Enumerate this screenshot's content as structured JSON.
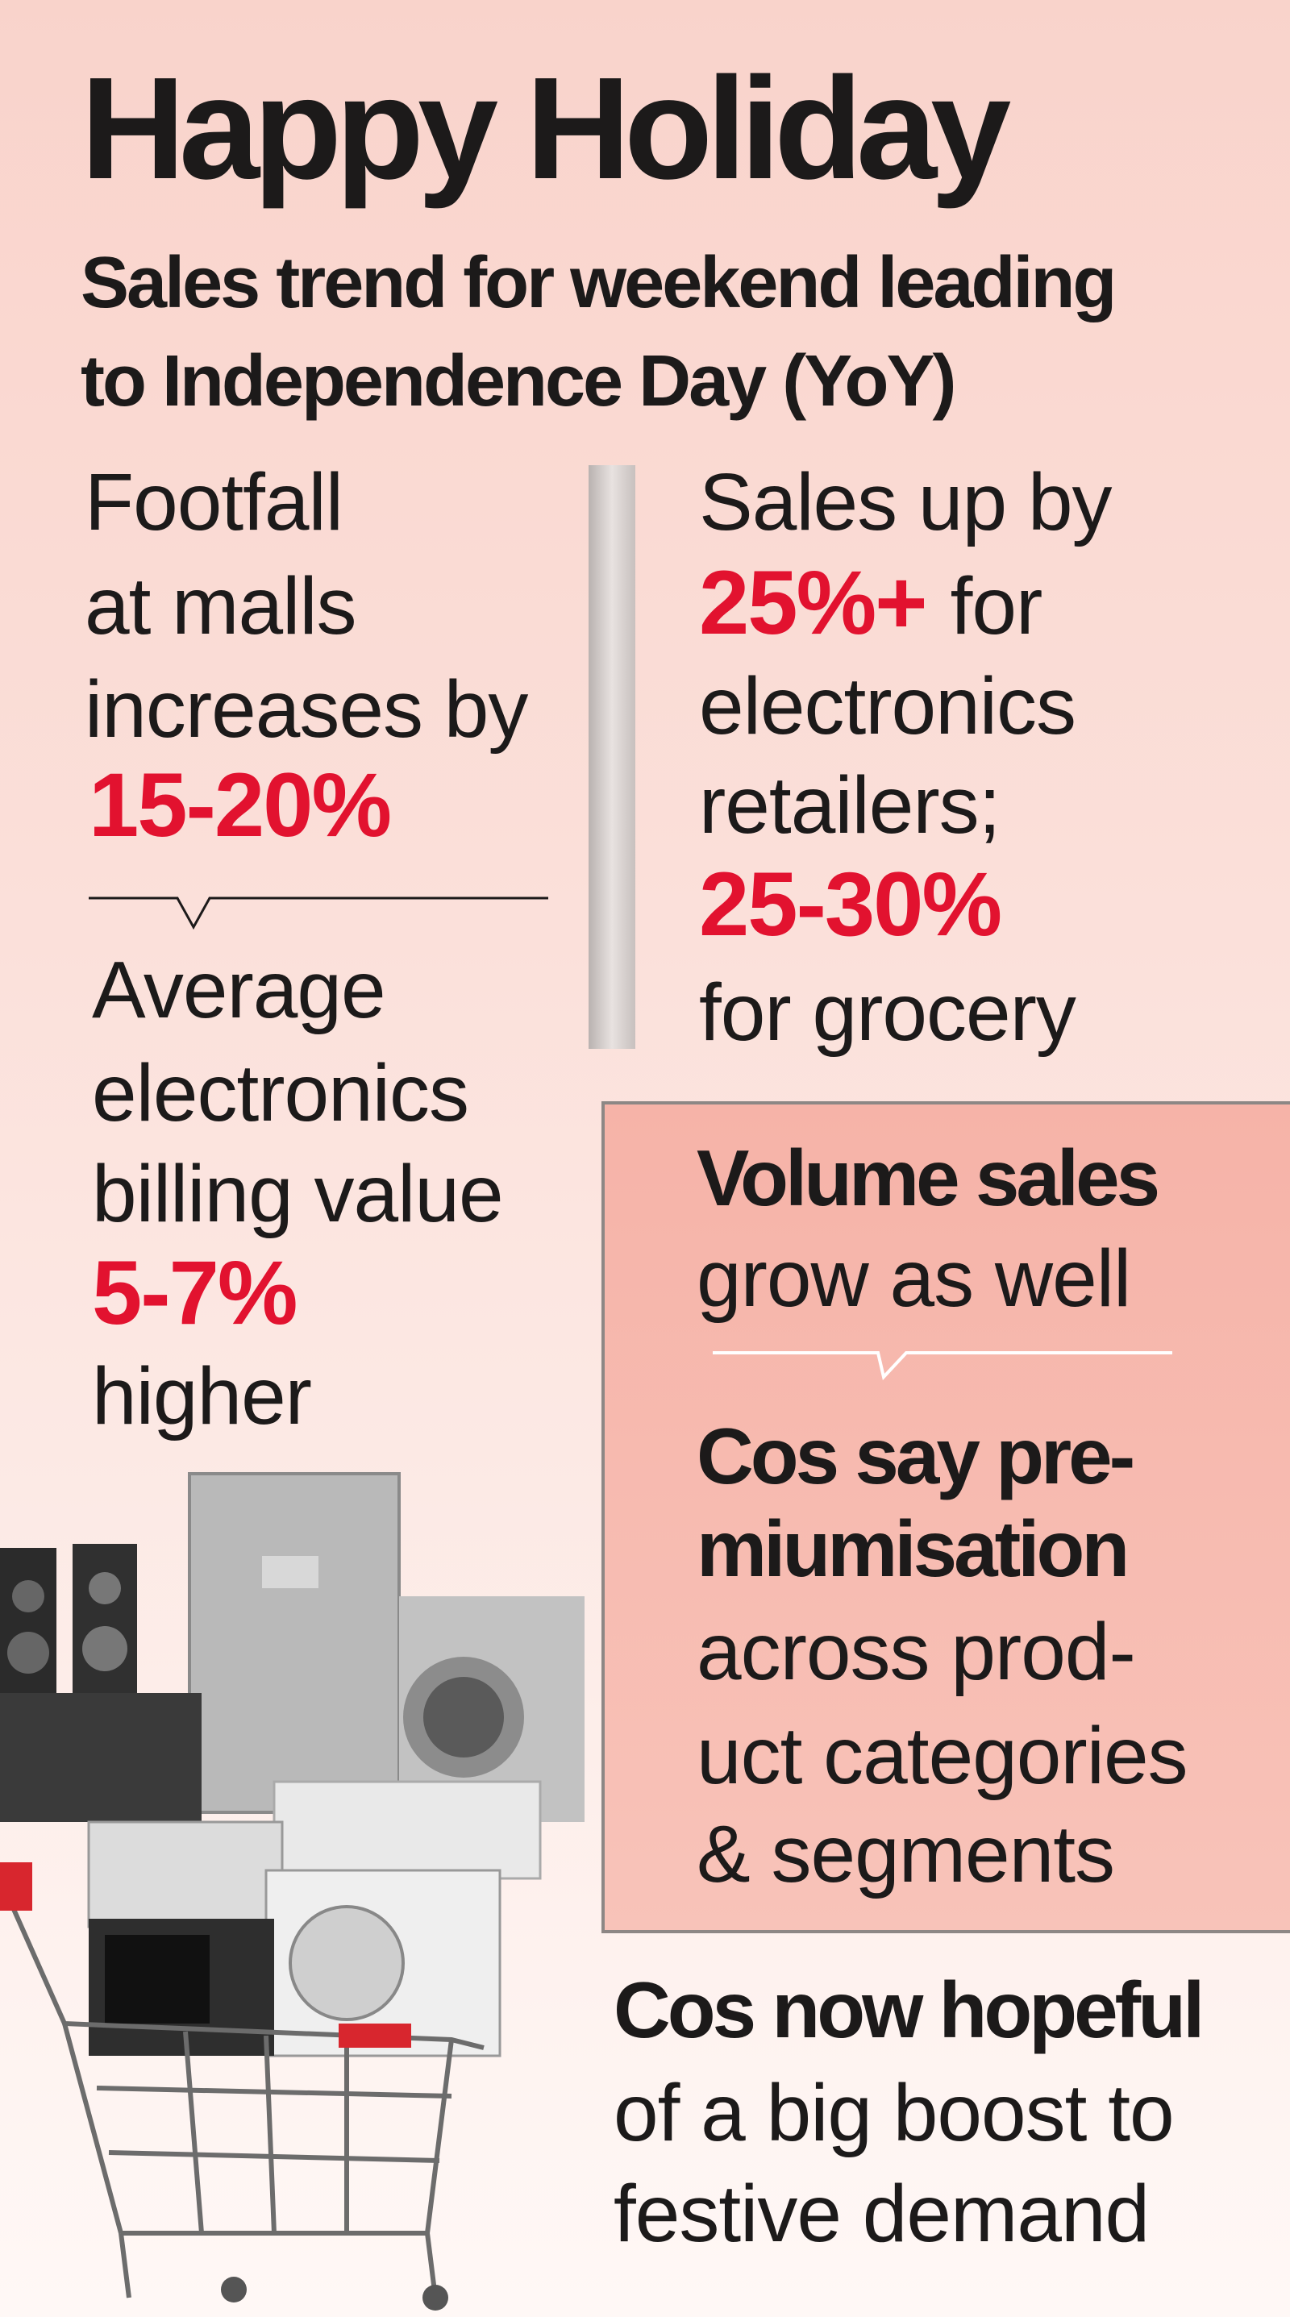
{
  "header": {
    "title": "Happy Holiday",
    "subtitle": [
      "Sales trend for weekend leading",
      "to Independence Day (YoY)"
    ]
  },
  "footfall": {
    "lines": [
      "Footfall",
      "at malls",
      "increases by"
    ],
    "figure": "15-20%"
  },
  "billing": {
    "lines": [
      "Average",
      "electronics",
      "billing value"
    ],
    "figure": "5-7%",
    "tail": "higher"
  },
  "sales": {
    "intro": "Sales up by",
    "electronics_figure": "25%+",
    "electronics_lines": [
      "for",
      "electronics",
      "retailers;"
    ],
    "grocery_figure": "25-30%",
    "grocery_text": "for grocery"
  },
  "volume": {
    "bold": "Volume sales",
    "text": "grow as well"
  },
  "premium": {
    "bold_lines": [
      "Cos say pre-",
      "miumisation"
    ],
    "lines": [
      "across prod-",
      "uct categories",
      "& segments"
    ]
  },
  "outlook": {
    "bold": "Cos now hopeful",
    "lines": [
      "of a big boost to",
      "festive demand"
    ]
  }
}
